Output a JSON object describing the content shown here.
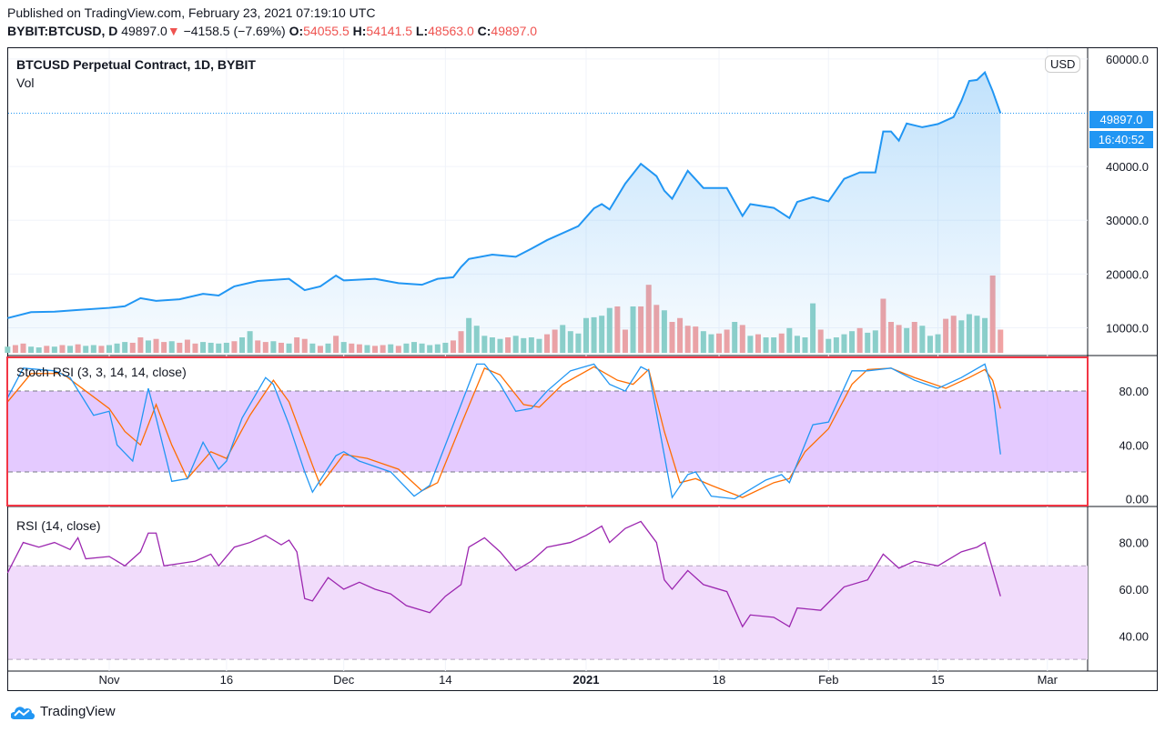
{
  "header": {
    "published": "Published on TradingView.com, February 23, 2021 07:19:10 UTC",
    "symbol": "BYBIT:BTCUSD, D",
    "last": "49897.0",
    "change": "−4158.5 (−7.69%)",
    "o_label": "O:",
    "o": "54055.5",
    "h_label": "H:",
    "h": "54141.5",
    "l_label": "L:",
    "l": "48563.0",
    "c_label": "C:",
    "c": "49897.0"
  },
  "main_pane": {
    "title": "BTCUSD Perpetual Contract, 1D, BYBIT",
    "vol_label": "Vol",
    "currency_button": "USD",
    "price_tag": "49897.0",
    "countdown_tag": "16:40:52"
  },
  "stoch_pane": {
    "title": "Stoch RSI (3, 3, 14, 14, close)"
  },
  "rsi_pane": {
    "title": "RSI (14, close)"
  },
  "footer": {
    "brand": "TradingView"
  },
  "colors": {
    "price_line": "#2196f3",
    "vol_up": "#8fd1c8",
    "vol_down": "#f2a3a3",
    "stoch_k": "#2196f3",
    "stoch_d": "#ff6d00",
    "stoch_band": "#d9b3ff",
    "rsi_line": "#9c27b0",
    "rsi_band": "#f1dcfb",
    "highlight_box": "#f23645",
    "negative": "#ef5350"
  },
  "chart_data": [
    {
      "type": "line",
      "name": "price",
      "y_ticks": [
        "60000.0",
        "40000.0",
        "30000.0",
        "20000.0",
        "10000.0"
      ],
      "x_ticks": [
        {
          "date": "2020-11-01",
          "label": "Nov"
        },
        {
          "date": "2020-11-16",
          "label": "16"
        },
        {
          "date": "2020-12-01",
          "label": "Dec"
        },
        {
          "date": "2020-12-14",
          "label": "14"
        },
        {
          "date": "2021-01-01",
          "label": "2021"
        },
        {
          "date": "2021-01-18",
          "label": "18"
        },
        {
          "date": "2021-02-01",
          "label": "Feb"
        },
        {
          "date": "2021-02-15",
          "label": "15"
        },
        {
          "date": "2021-03-01",
          "label": "Mar"
        }
      ],
      "ylim": [
        5000,
        62000
      ],
      "close": [
        [
          "2020-10-19",
          11800
        ],
        [
          "2020-10-22",
          12900
        ],
        [
          "2020-10-25",
          13000
        ],
        [
          "2020-10-28",
          13300
        ],
        [
          "2020-11-01",
          13700
        ],
        [
          "2020-11-03",
          14000
        ],
        [
          "2020-11-05",
          15500
        ],
        [
          "2020-11-07",
          15000
        ],
        [
          "2020-11-10",
          15300
        ],
        [
          "2020-11-13",
          16300
        ],
        [
          "2020-11-15",
          16000
        ],
        [
          "2020-11-17",
          17700
        ],
        [
          "2020-11-20",
          18700
        ],
        [
          "2020-11-24",
          19100
        ],
        [
          "2020-11-26",
          17000
        ],
        [
          "2020-11-28",
          17700
        ],
        [
          "2020-11-30",
          19700
        ],
        [
          "2020-12-01",
          18800
        ],
        [
          "2020-12-05",
          19100
        ],
        [
          "2020-12-08",
          18300
        ],
        [
          "2020-12-11",
          18000
        ],
        [
          "2020-12-13",
          19100
        ],
        [
          "2020-12-15",
          19400
        ],
        [
          "2020-12-16",
          21300
        ],
        [
          "2020-12-17",
          22800
        ],
        [
          "2020-12-20",
          23600
        ],
        [
          "2020-12-23",
          23200
        ],
        [
          "2020-12-25",
          24700
        ],
        [
          "2020-12-27",
          26300
        ],
        [
          "2020-12-31",
          28900
        ],
        [
          "2021-01-02",
          32200
        ],
        [
          "2021-01-03",
          33000
        ],
        [
          "2021-01-04",
          32000
        ],
        [
          "2021-01-06",
          36800
        ],
        [
          "2021-01-08",
          40500
        ],
        [
          "2021-01-10",
          38200
        ],
        [
          "2021-01-11",
          35500
        ],
        [
          "2021-01-12",
          34000
        ],
        [
          "2021-01-14",
          39200
        ],
        [
          "2021-01-16",
          36000
        ],
        [
          "2021-01-19",
          36000
        ],
        [
          "2021-01-21",
          30800
        ],
        [
          "2021-01-22",
          33000
        ],
        [
          "2021-01-25",
          32300
        ],
        [
          "2021-01-27",
          30400
        ],
        [
          "2021-01-28",
          33400
        ],
        [
          "2021-01-30",
          34300
        ],
        [
          "2021-02-01",
          33500
        ],
        [
          "2021-02-03",
          37700
        ],
        [
          "2021-02-05",
          38900
        ],
        [
          "2021-02-07",
          38900
        ],
        [
          "2021-02-08",
          46500
        ],
        [
          "2021-02-09",
          46500
        ],
        [
          "2021-02-10",
          44800
        ],
        [
          "2021-02-11",
          48000
        ],
        [
          "2021-02-13",
          47300
        ],
        [
          "2021-02-15",
          47900
        ],
        [
          "2021-02-17",
          49200
        ],
        [
          "2021-02-18",
          52200
        ],
        [
          "2021-02-19",
          55900
        ],
        [
          "2021-02-20",
          56100
        ],
        [
          "2021-02-21",
          57500
        ],
        [
          "2021-02-22",
          54000
        ],
        [
          "2021-02-23",
          49897
        ]
      ],
      "volume_start": "2020-10-19",
      "volume_relative": [
        8,
        10,
        12,
        8,
        7,
        9,
        8,
        10,
        9,
        11,
        9,
        10,
        9,
        10,
        12,
        14,
        13,
        20,
        16,
        18,
        14,
        15,
        13,
        17,
        12,
        14,
        13,
        12,
        13,
        15,
        20,
        28,
        16,
        14,
        15,
        13,
        12,
        20,
        18,
        12,
        9,
        12,
        22,
        14,
        12,
        11,
        10,
        9,
        10,
        11,
        9,
        12,
        14,
        12,
        10,
        11,
        13,
        16,
        28,
        45,
        35,
        22,
        20,
        18,
        20,
        22,
        19,
        20,
        18,
        24,
        30,
        36,
        28,
        25,
        45,
        46,
        48,
        58,
        60,
        30,
        60,
        60,
        88,
        62,
        55,
        40,
        45,
        35,
        34,
        28,
        24,
        25,
        30,
        40,
        36,
        22,
        24,
        20,
        20,
        25,
        32,
        22,
        20,
        64,
        30,
        18,
        20,
        24,
        28,
        32,
        26,
        29,
        70,
        40,
        36,
        32,
        40,
        35,
        22,
        24,
        44,
        48,
        42,
        50,
        48,
        45,
        100,
        30
      ],
      "volume_direction": "udduudududuuduuuddudduddduuuuduuddududdudududduddudu uuuuudduuuuuduuuudduuuuuuuddudddudddduuddududuuduuuuduuuuduudddudu uudduuuudd"
    },
    {
      "type": "line",
      "name": "Stoch RSI",
      "ylim": [
        -5,
        105
      ],
      "y_ticks": [
        "80.00",
        "40.00",
        "0.00"
      ],
      "bands": [
        20,
        80
      ],
      "k": [
        [
          "2020-10-19",
          75
        ],
        [
          "2020-10-21",
          97
        ],
        [
          "2020-10-25",
          95
        ],
        [
          "2020-10-27",
          90
        ],
        [
          "2020-10-30",
          62
        ],
        [
          "2020-11-01",
          65
        ],
        [
          "2020-11-02",
          40
        ],
        [
          "2020-11-04",
          28
        ],
        [
          "2020-11-06",
          82
        ],
        [
          "2020-11-07",
          60
        ],
        [
          "2020-11-09",
          13
        ],
        [
          "2020-11-11",
          15
        ],
        [
          "2020-11-13",
          42
        ],
        [
          "2020-11-15",
          22
        ],
        [
          "2020-11-16",
          28
        ],
        [
          "2020-11-18",
          60
        ],
        [
          "2020-11-21",
          90
        ],
        [
          "2020-11-22",
          85
        ],
        [
          "2020-11-24",
          55
        ],
        [
          "2020-11-26",
          20
        ],
        [
          "2020-11-27",
          5
        ],
        [
          "2020-11-30",
          32
        ],
        [
          "2020-12-01",
          35
        ],
        [
          "2020-12-03",
          28
        ],
        [
          "2020-12-07",
          20
        ],
        [
          "2020-12-10",
          2
        ],
        [
          "2020-12-12",
          10
        ],
        [
          "2020-12-15",
          55
        ],
        [
          "2020-12-18",
          100
        ],
        [
          "2020-12-19",
          100
        ],
        [
          "2020-12-21",
          85
        ],
        [
          "2020-12-23",
          65
        ],
        [
          "2020-12-25",
          67
        ],
        [
          "2020-12-27",
          80
        ],
        [
          "2020-12-30",
          95
        ],
        [
          "2021-01-02",
          100
        ],
        [
          "2021-01-04",
          85
        ],
        [
          "2021-01-06",
          80
        ],
        [
          "2021-01-08",
          98
        ],
        [
          "2021-01-09",
          95
        ],
        [
          "2021-01-12",
          1
        ],
        [
          "2021-01-14",
          18
        ],
        [
          "2021-01-15",
          20
        ],
        [
          "2021-01-17",
          2
        ],
        [
          "2021-01-20",
          0
        ],
        [
          "2021-01-24",
          14
        ],
        [
          "2021-01-26",
          18
        ],
        [
          "2021-01-27",
          12
        ],
        [
          "2021-01-30",
          55
        ],
        [
          "2021-02-01",
          57
        ],
        [
          "2021-02-04",
          95
        ],
        [
          "2021-02-06",
          95
        ],
        [
          "2021-02-09",
          97
        ],
        [
          "2021-02-12",
          88
        ],
        [
          "2021-02-15",
          82
        ],
        [
          "2021-02-18",
          90
        ],
        [
          "2021-02-21",
          100
        ],
        [
          "2021-02-22",
          80
        ],
        [
          "2021-02-23",
          33
        ]
      ],
      "d": [
        [
          "2020-10-19",
          72
        ],
        [
          "2020-10-22",
          93
        ],
        [
          "2020-10-26",
          93
        ],
        [
          "2020-10-29",
          80
        ],
        [
          "2020-11-01",
          67
        ],
        [
          "2020-11-03",
          50
        ],
        [
          "2020-11-05",
          40
        ],
        [
          "2020-11-07",
          70
        ],
        [
          "2020-11-09",
          40
        ],
        [
          "2020-11-11",
          15
        ],
        [
          "2020-11-14",
          35
        ],
        [
          "2020-11-16",
          30
        ],
        [
          "2020-11-19",
          62
        ],
        [
          "2020-11-22",
          88
        ],
        [
          "2020-11-24",
          72
        ],
        [
          "2020-11-27",
          25
        ],
        [
          "2020-11-28",
          10
        ],
        [
          "2020-12-01",
          33
        ],
        [
          "2020-12-04",
          30
        ],
        [
          "2020-12-08",
          22
        ],
        [
          "2020-12-11",
          6
        ],
        [
          "2020-12-13",
          12
        ],
        [
          "2020-12-16",
          55
        ],
        [
          "2020-12-19",
          97
        ],
        [
          "2020-12-21",
          92
        ],
        [
          "2020-12-24",
          70
        ],
        [
          "2020-12-26",
          68
        ],
        [
          "2020-12-29",
          85
        ],
        [
          "2021-01-02",
          98
        ],
        [
          "2021-01-05",
          88
        ],
        [
          "2021-01-07",
          85
        ],
        [
          "2021-01-09",
          96
        ],
        [
          "2021-01-11",
          50
        ],
        [
          "2021-01-13",
          12
        ],
        [
          "2021-01-15",
          15
        ],
        [
          "2021-01-17",
          10
        ],
        [
          "2021-01-21",
          1
        ],
        [
          "2021-01-25",
          12
        ],
        [
          "2021-01-27",
          15
        ],
        [
          "2021-01-29",
          35
        ],
        [
          "2021-02-01",
          52
        ],
        [
          "2021-02-04",
          85
        ],
        [
          "2021-02-06",
          96
        ],
        [
          "2021-02-09",
          97
        ],
        [
          "2021-02-12",
          90
        ],
        [
          "2021-02-16",
          82
        ],
        [
          "2021-02-19",
          90
        ],
        [
          "2021-02-21",
          96
        ],
        [
          "2021-02-22",
          88
        ],
        [
          "2021-02-23",
          67
        ]
      ]
    },
    {
      "type": "line",
      "name": "RSI",
      "ylim": [
        25,
        95
      ],
      "y_ticks": [
        "80.00",
        "60.00",
        "40.00"
      ],
      "bands": [
        30,
        70
      ],
      "values": [
        [
          "2020-10-19",
          67
        ],
        [
          "2020-10-21",
          80
        ],
        [
          "2020-10-23",
          78
        ],
        [
          "2020-10-25",
          80
        ],
        [
          "2020-10-27",
          77
        ],
        [
          "2020-10-28",
          82
        ],
        [
          "2020-10-29",
          73
        ],
        [
          "2020-11-01",
          74
        ],
        [
          "2020-11-03",
          70
        ],
        [
          "2020-11-05",
          76
        ],
        [
          "2020-11-06",
          84
        ],
        [
          "2020-11-07",
          84
        ],
        [
          "2020-11-08",
          70
        ],
        [
          "2020-11-10",
          71
        ],
        [
          "2020-11-12",
          72
        ],
        [
          "2020-11-14",
          75
        ],
        [
          "2020-11-15",
          70
        ],
        [
          "2020-11-17",
          78
        ],
        [
          "2020-11-19",
          80
        ],
        [
          "2020-11-21",
          83
        ],
        [
          "2020-11-23",
          79
        ],
        [
          "2020-11-24",
          81
        ],
        [
          "2020-11-25",
          76
        ],
        [
          "2020-11-26",
          56
        ],
        [
          "2020-11-27",
          55
        ],
        [
          "2020-11-29",
          65
        ],
        [
          "2020-12-01",
          60
        ],
        [
          "2020-12-03",
          63
        ],
        [
          "2020-12-05",
          60
        ],
        [
          "2020-12-07",
          58
        ],
        [
          "2020-12-09",
          53
        ],
        [
          "2020-12-12",
          50
        ],
        [
          "2020-12-14",
          57
        ],
        [
          "2020-12-16",
          62
        ],
        [
          "2020-12-17",
          78
        ],
        [
          "2020-12-19",
          82
        ],
        [
          "2020-12-21",
          76
        ],
        [
          "2020-12-23",
          68
        ],
        [
          "2020-12-25",
          72
        ],
        [
          "2020-12-27",
          78
        ],
        [
          "2020-12-30",
          80
        ],
        [
          "2021-01-01",
          83
        ],
        [
          "2021-01-03",
          87
        ],
        [
          "2021-01-04",
          80
        ],
        [
          "2021-01-06",
          86
        ],
        [
          "2021-01-08",
          89
        ],
        [
          "2021-01-10",
          80
        ],
        [
          "2021-01-11",
          64
        ],
        [
          "2021-01-12",
          60
        ],
        [
          "2021-01-14",
          68
        ],
        [
          "2021-01-16",
          62
        ],
        [
          "2021-01-19",
          59
        ],
        [
          "2021-01-21",
          44
        ],
        [
          "2021-01-22",
          49
        ],
        [
          "2021-01-25",
          48
        ],
        [
          "2021-01-27",
          44
        ],
        [
          "2021-01-28",
          52
        ],
        [
          "2021-01-31",
          51
        ],
        [
          "2021-02-03",
          61
        ],
        [
          "2021-02-06",
          64
        ],
        [
          "2021-02-08",
          75
        ],
        [
          "2021-02-10",
          69
        ],
        [
          "2021-02-12",
          72
        ],
        [
          "2021-02-15",
          70
        ],
        [
          "2021-02-18",
          76
        ],
        [
          "2021-02-20",
          78
        ],
        [
          "2021-02-21",
          80
        ],
        [
          "2021-02-23",
          57
        ]
      ]
    }
  ]
}
